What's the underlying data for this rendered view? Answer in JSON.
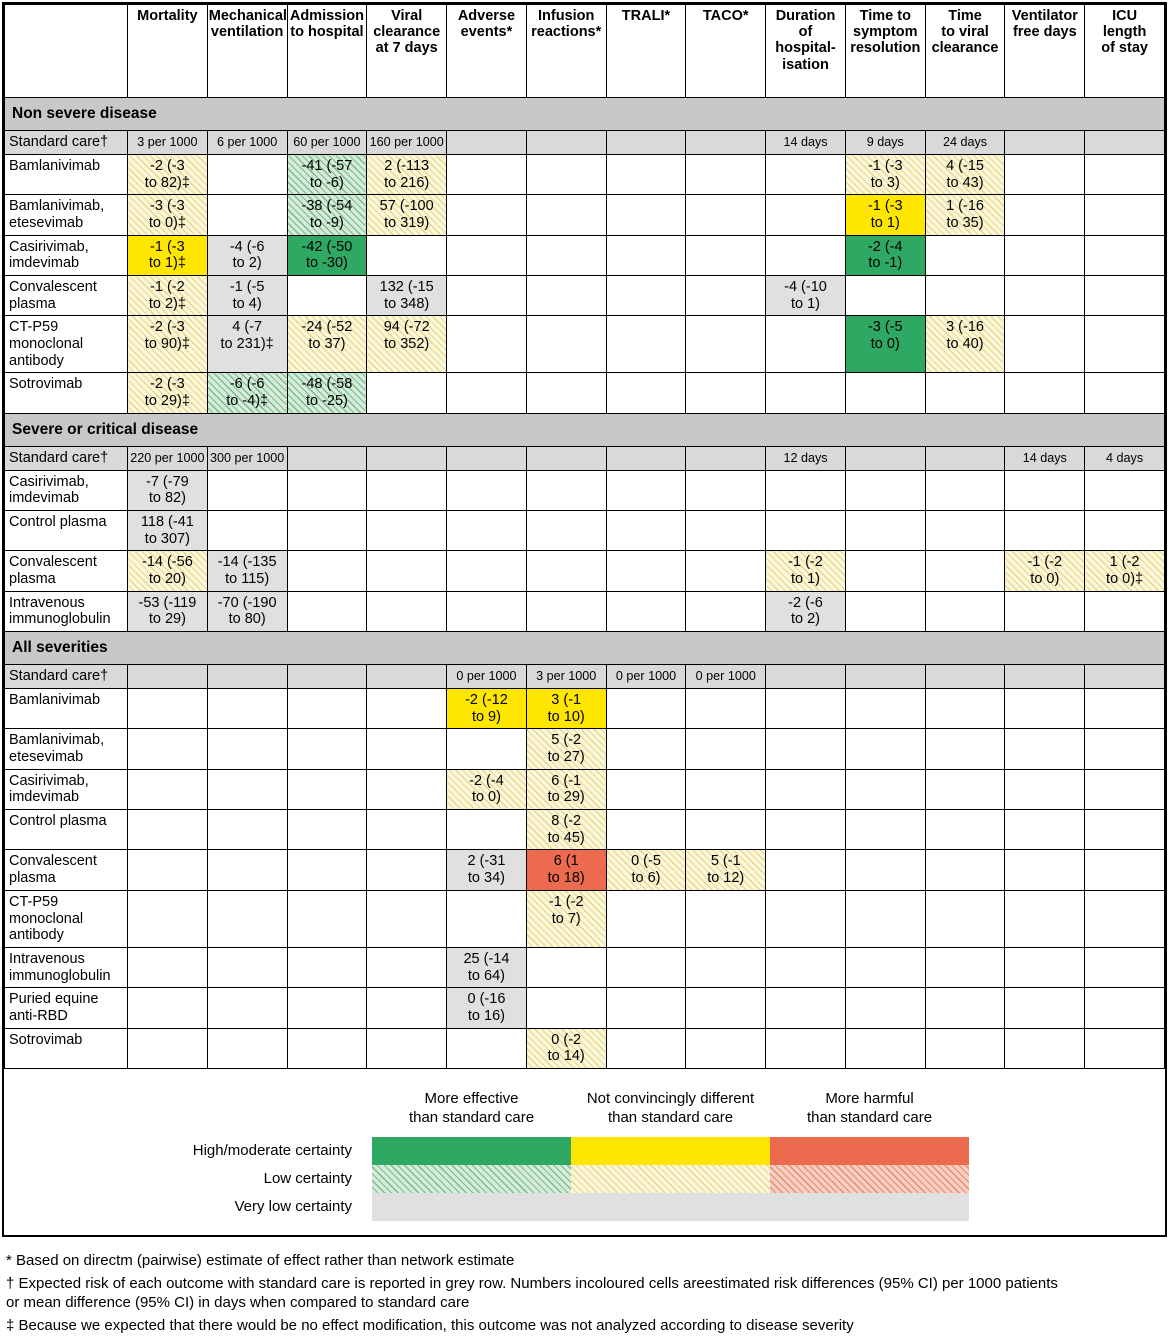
{
  "colors": {
    "green": "#2EA862",
    "green_hatch_base": "#d7ebdb",
    "green_hatch_line": "#77bc8a",
    "yellow": "#FFE600",
    "yellow_hatch_base": "#fcf6da",
    "yellow_hatch_line": "#e6d98e",
    "red": "#EC6A4E",
    "red_hatch_base": "#f6cfc2",
    "red_hatch_line": "#e98a6a",
    "grey_cell": "#e0e0e0",
    "standard_row": "#d9d9d9",
    "section_band": "#c8c8c8"
  },
  "style_key": {
    "g": "more effective than standard care, high/moderate certainty",
    "gh": "more effective than standard care, low certainty",
    "y": "not convincingly different than standard care, high/moderate certainty",
    "yh": "not convincingly different than standard care, low certainty",
    "r": "more harmful than standard care, high/moderate certainty",
    "rh": "more harmful than standard care, low certainty",
    "e": "very low certainty"
  },
  "chart_data": {
    "type": "table",
    "columns": [
      "Mortality",
      "Mechanical\nventilation",
      "Admission\nto hospital",
      "Viral\nclearance\nat 7 days",
      "Adverse\nevents*",
      "Infusion\nreactions*",
      "TRALI*",
      "TACO*",
      "Duration\nof hospital-\nisation",
      "Time to\nsymptom\nresolution",
      "Time\nto viral\nclearance",
      "Ventilator\nfree days",
      "ICU\nlength\nof stay"
    ],
    "sections": [
      {
        "title": "Non severe disease",
        "rows": [
          {
            "label": "Standard care†",
            "standard": true,
            "cells": {
              "0": {
                "t": "3 per 1000"
              },
              "1": {
                "t": "6 per 1000"
              },
              "2": {
                "t": "60 per 1000"
              },
              "3": {
                "t": "160 per 1000"
              },
              "8": {
                "t": "14 days"
              },
              "9": {
                "t": "9 days"
              },
              "10": {
                "t": "24 days"
              }
            }
          },
          {
            "label": "Bamlanivimab",
            "cells": {
              "0": {
                "t": "-2 (-3\nto 82)‡",
                "s": "yh"
              },
              "2": {
                "t": "-41 (-57\nto -6)",
                "s": "gh"
              },
              "3": {
                "t": "2 (-113\nto 216)",
                "s": "yh"
              },
              "9": {
                "t": "-1 (-3\nto 3)",
                "s": "yh"
              },
              "10": {
                "t": "4 (-15\nto 43)",
                "s": "yh"
              }
            }
          },
          {
            "label": "Bamlanivimab,\netesevimab",
            "cells": {
              "0": {
                "t": "-3 (-3\nto 0)‡",
                "s": "yh"
              },
              "2": {
                "t": "-38 (-54\nto -9)",
                "s": "gh"
              },
              "3": {
                "t": "57 (-100\nto 319)",
                "s": "yh"
              },
              "9": {
                "t": "-1 (-3\nto 1)",
                "s": "y"
              },
              "10": {
                "t": "1 (-16\nto 35)",
                "s": "yh"
              }
            }
          },
          {
            "label": "Casirivimab,\nimdevimab",
            "cells": {
              "0": {
                "t": "-1 (-3\nto 1)‡",
                "s": "y"
              },
              "1": {
                "t": "-4 (-6\nto 2)",
                "s": "e"
              },
              "2": {
                "t": "-42 (-50\nto -30)",
                "s": "g"
              },
              "9": {
                "t": "-2 (-4\nto -1)",
                "s": "g"
              }
            }
          },
          {
            "label": "Convalescent\nplasma",
            "cells": {
              "0": {
                "t": "-1 (-2\nto 2)‡",
                "s": "yh"
              },
              "1": {
                "t": "-1 (-5\nto 4)",
                "s": "e"
              },
              "3": {
                "t": "132 (-15\nto 348)",
                "s": "e"
              },
              "8": {
                "t": "-4 (-10\nto 1)",
                "s": "e"
              }
            }
          },
          {
            "label": "CT-P59\nmonoclonal\nantibody",
            "cells": {
              "0": {
                "t": "-2 (-3\nto 90)‡",
                "s": "yh"
              },
              "1": {
                "t": "4 (-7\nto 231)‡",
                "s": "e"
              },
              "2": {
                "t": "-24 (-52\nto 37)",
                "s": "yh"
              },
              "3": {
                "t": "94 (-72\nto 352)",
                "s": "yh"
              },
              "9": {
                "t": "-3 (-5\nto 0)",
                "s": "g"
              },
              "10": {
                "t": "3 (-16\nto 40)",
                "s": "yh"
              }
            }
          },
          {
            "label": "Sotrovimab",
            "cells": {
              "0": {
                "t": "-2 (-3\nto 29)‡",
                "s": "yh"
              },
              "1": {
                "t": "-6 (-6\nto -4)‡",
                "s": "gh"
              },
              "2": {
                "t": "-48 (-58\nto -25)",
                "s": "gh"
              }
            }
          }
        ]
      },
      {
        "title": "Severe or critical disease",
        "rows": [
          {
            "label": "Standard care†",
            "standard": true,
            "cells": {
              "0": {
                "t": "220 per 1000"
              },
              "1": {
                "t": "300 per 1000"
              },
              "8": {
                "t": "12 days"
              },
              "11": {
                "t": "14 days"
              },
              "12": {
                "t": "4 days"
              }
            }
          },
          {
            "label": "Casirivimab,\nimdevimab",
            "cells": {
              "0": {
                "t": "-7 (-79\nto 82)",
                "s": "e"
              }
            }
          },
          {
            "label": "Control plasma",
            "cells": {
              "0": {
                "t": "118 (-41\nto 307)",
                "s": "e"
              }
            }
          },
          {
            "label": "Convalescent\nplasma",
            "cells": {
              "0": {
                "t": "-14 (-56\nto 20)",
                "s": "yh"
              },
              "1": {
                "t": "-14 (-135\nto 115)",
                "s": "e"
              },
              "8": {
                "t": "-1 (-2\nto 1)",
                "s": "yh"
              },
              "11": {
                "t": "-1 (-2\nto 0)",
                "s": "yh"
              },
              "12": {
                "t": "1 (-2\nto 0)‡",
                "s": "yh"
              }
            }
          },
          {
            "label": "Intravenous\nimmunoglobulin",
            "cells": {
              "0": {
                "t": "-53 (-119\nto 29)",
                "s": "e"
              },
              "1": {
                "t": "-70 (-190\nto 80)",
                "s": "e"
              },
              "8": {
                "t": "-2 (-6\nto 2)",
                "s": "e"
              }
            }
          }
        ]
      },
      {
        "title": "All severities",
        "rows": [
          {
            "label": "Standard care†",
            "standard": true,
            "cells": {
              "4": {
                "t": "0 per 1000"
              },
              "5": {
                "t": "3 per 1000"
              },
              "6": {
                "t": "0 per 1000"
              },
              "7": {
                "t": "0 per 1000"
              }
            }
          },
          {
            "label": "Bamlanivimab",
            "cells": {
              "4": {
                "t": "-2 (-12\nto 9)",
                "s": "y"
              },
              "5": {
                "t": "3 (-1\nto 10)",
                "s": "y"
              }
            }
          },
          {
            "label": "Bamlanivimab,\netesevimab",
            "cells": {
              "5": {
                "t": "5 (-2\nto 27)",
                "s": "yh"
              }
            }
          },
          {
            "label": "Casirivimab,\nimdevimab",
            "cells": {
              "4": {
                "t": "-2 (-4\nto 0)",
                "s": "yh"
              },
              "5": {
                "t": "6 (-1\nto 29)",
                "s": "yh"
              }
            }
          },
          {
            "label": "Control plasma",
            "cells": {
              "5": {
                "t": "8 (-2\nto 45)",
                "s": "yh"
              }
            }
          },
          {
            "label": "Convalescent\nplasma",
            "cells": {
              "4": {
                "t": "2 (-31\nto 34)",
                "s": "e"
              },
              "5": {
                "t": "6 (1\nto 18)",
                "s": "r"
              },
              "6": {
                "t": "0 (-5\nto 6)",
                "s": "yh"
              },
              "7": {
                "t": "5 (-1\nto 12)",
                "s": "yh"
              }
            }
          },
          {
            "label": "CT-P59\nmonoclonal\nantibody",
            "cells": {
              "5": {
                "t": "-1 (-2\nto 7)",
                "s": "yh"
              }
            }
          },
          {
            "label": "Intravenous\nimmunoglobulin",
            "cells": {
              "4": {
                "t": "25 (-14\nto 64)",
                "s": "e"
              }
            }
          },
          {
            "label": "Puried equine\nanti-RBD",
            "cells": {
              "4": {
                "t": "0 (-16\nto 16)",
                "s": "e"
              }
            }
          },
          {
            "label": "Sotrovimab",
            "cells": {
              "5": {
                "t": "0 (-2\nto 14)",
                "s": "yh"
              }
            }
          }
        ]
      }
    ]
  },
  "legend": {
    "col_headers": [
      "More effective\nthan standard care",
      "Not convincingly different\nthan standard care",
      "More harmful\nthan standard care"
    ],
    "rows": [
      "High/moderate certainty",
      "Low certainty",
      "Very low certainty"
    ]
  },
  "footnotes": [
    "* Based on directm (pairwise) estimate of effect rather than network estimate",
    "† Expected risk of each outcome with standard care is reported in grey row. Numbers incoloured cells areestimated risk differences (95% CI) per 1000 patients\n   or mean difference (95% CI) in days when compared to standard care",
    "‡ Because we expected that there would be no effect modification, this outcome was not analyzed according to disease severity"
  ]
}
